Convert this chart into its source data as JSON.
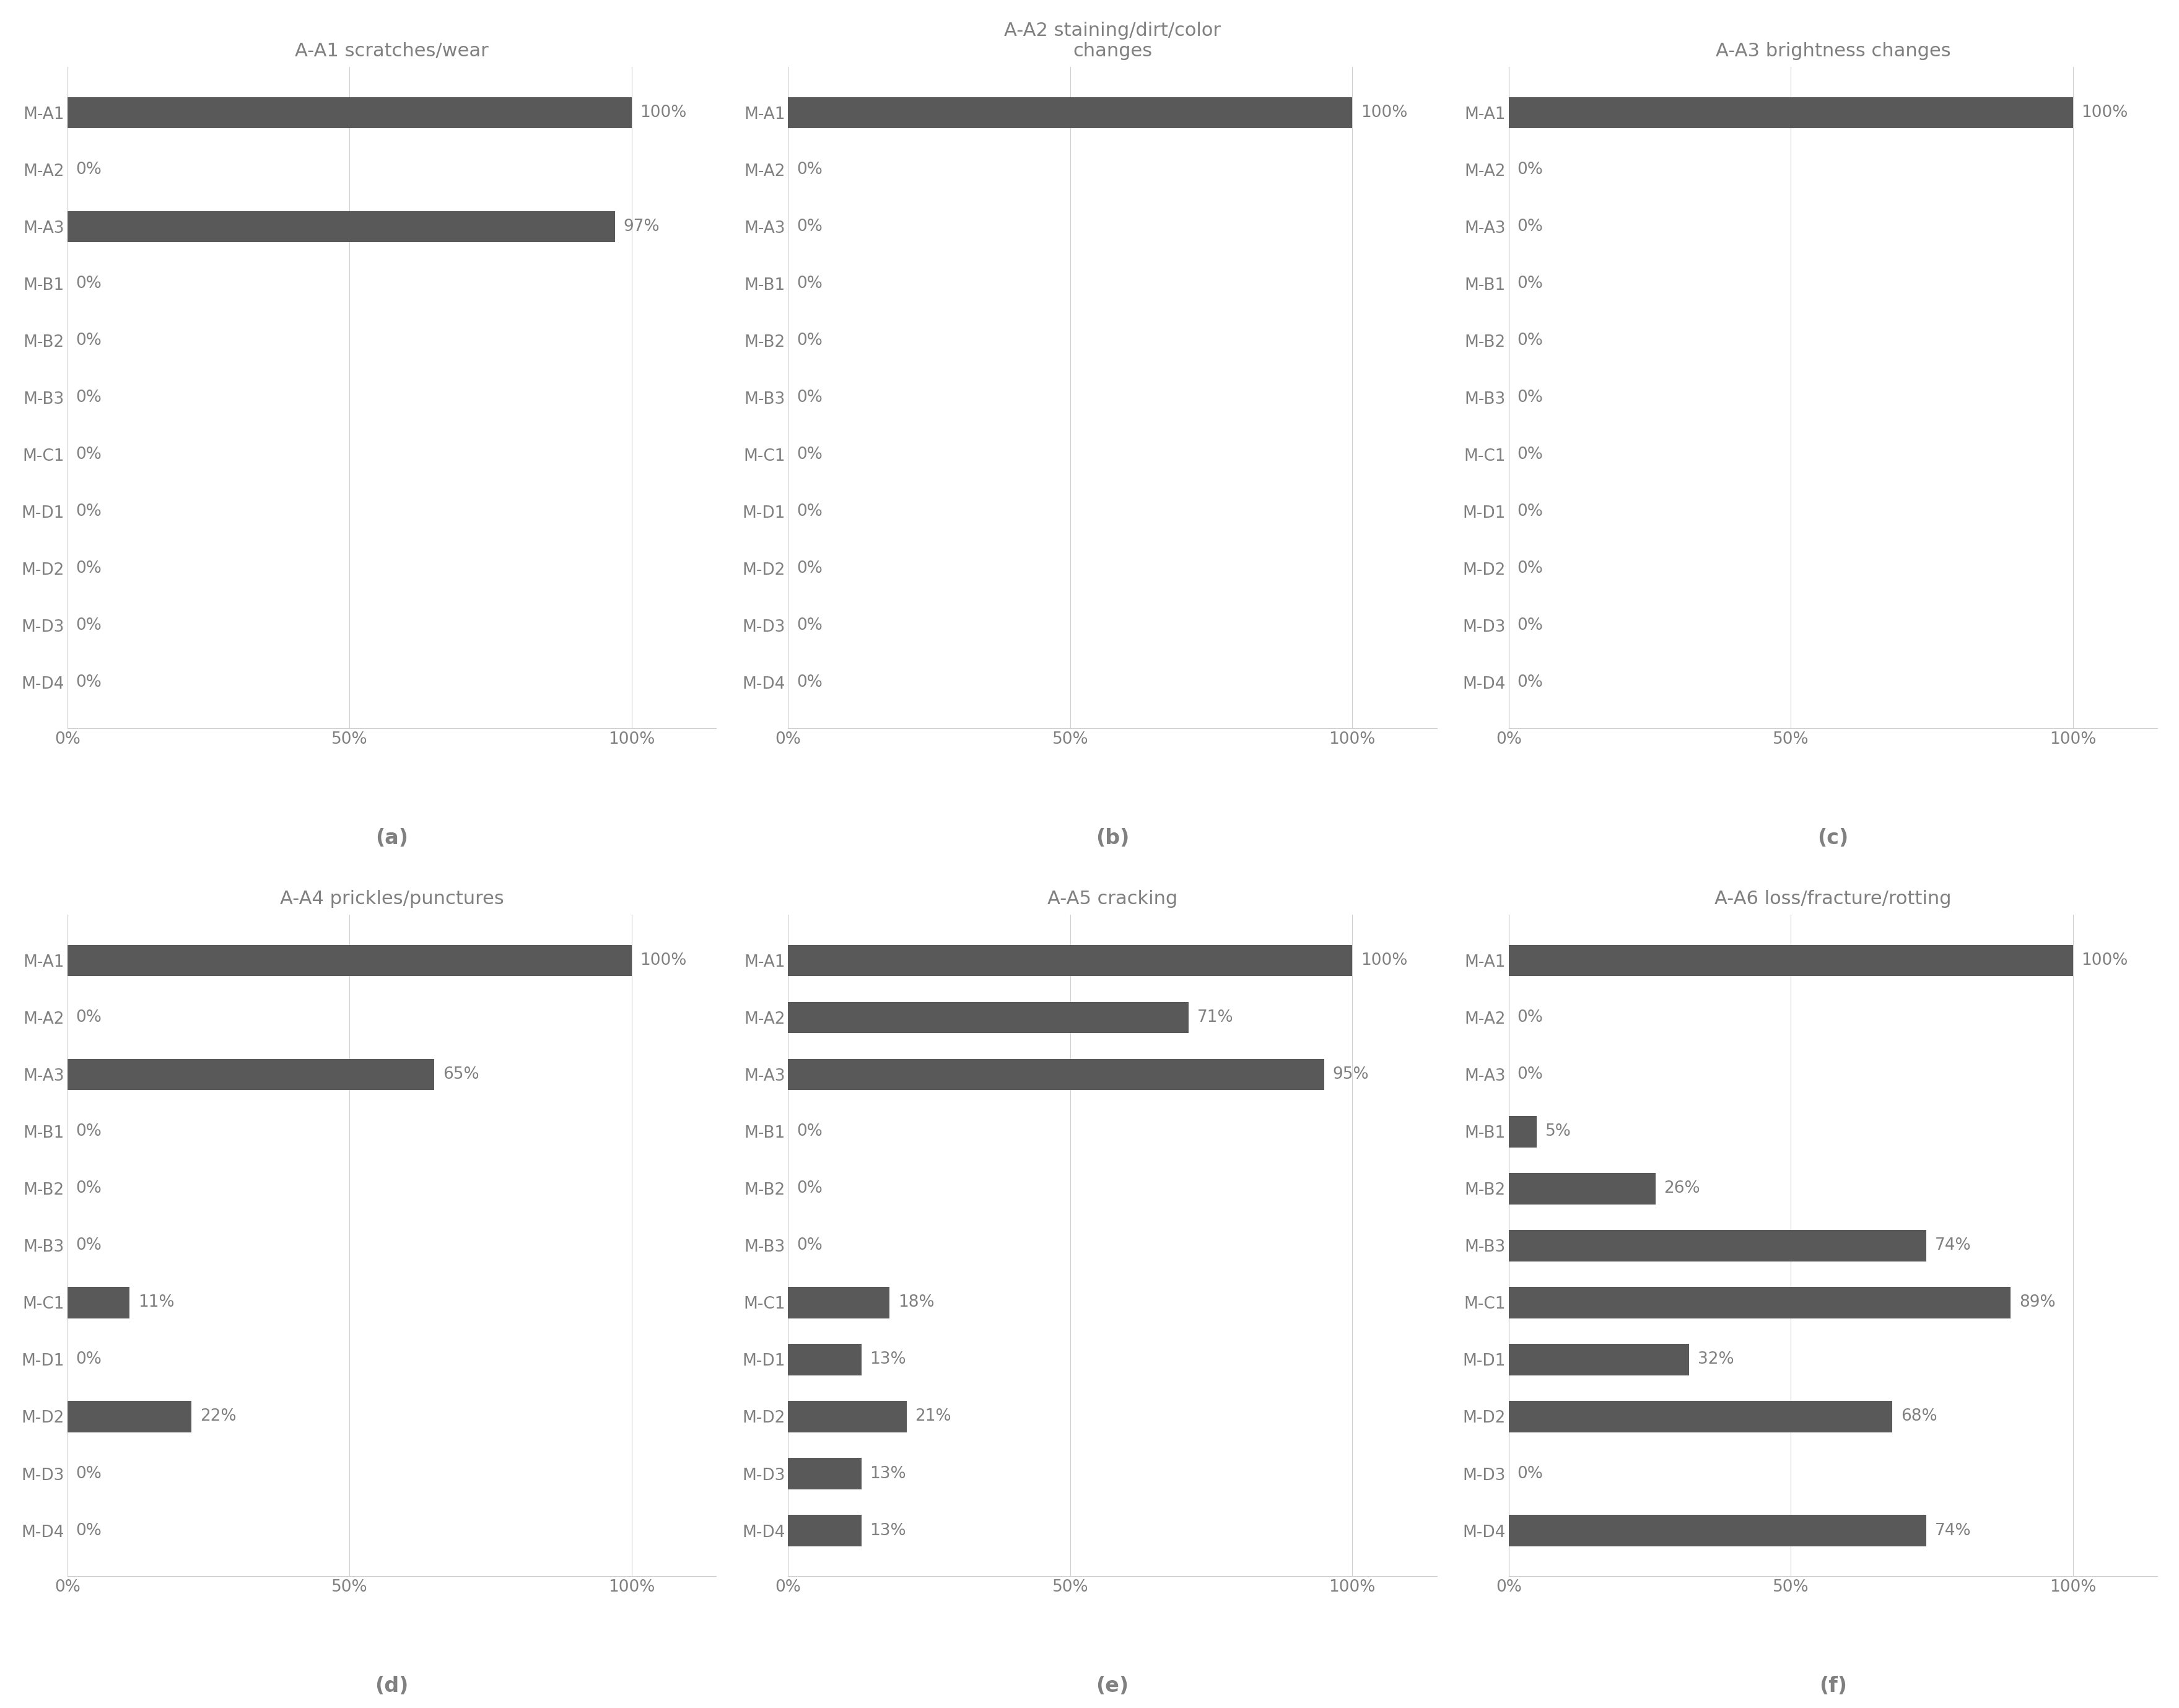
{
  "categories": [
    "M-A1",
    "M-A2",
    "M-A3",
    "M-B1",
    "M-B2",
    "M-B3",
    "M-C1",
    "M-D1",
    "M-D2",
    "M-D3",
    "M-D4"
  ],
  "charts": [
    {
      "title": "A-A1 scratches/wear",
      "label": "(a)",
      "values": [
        100,
        0,
        97,
        0,
        0,
        0,
        0,
        0,
        0,
        0,
        0
      ],
      "labels": [
        "100%",
        "0%",
        "97%",
        "0%",
        "0%",
        "0%",
        "0%",
        "0%",
        "0%",
        "0%",
        "0%"
      ]
    },
    {
      "title": "A-A2 staining/dirt/color\nchanges",
      "label": "(b)",
      "values": [
        100,
        0,
        0,
        0,
        0,
        0,
        0,
        0,
        0,
        0,
        0
      ],
      "labels": [
        "100%",
        "0%",
        "0%",
        "0%",
        "0%",
        "0%",
        "0%",
        "0%",
        "0%",
        "0%",
        "0%"
      ]
    },
    {
      "title": "A-A3 brightness changes",
      "label": "(c)",
      "values": [
        100,
        0,
        0,
        0,
        0,
        0,
        0,
        0,
        0,
        0,
        0
      ],
      "labels": [
        "100%",
        "0%",
        "0%",
        "0%",
        "0%",
        "0%",
        "0%",
        "0%",
        "0%",
        "0%",
        "0%"
      ]
    },
    {
      "title": "A-A4 prickles/punctures",
      "label": "(d)",
      "values": [
        100,
        0,
        65,
        0,
        0,
        0,
        11,
        0,
        22,
        0,
        0
      ],
      "labels": [
        "100%",
        "0%",
        "65%",
        "0%",
        "0%",
        "0%",
        "11%",
        "0%",
        "22%",
        "0%",
        "0%"
      ]
    },
    {
      "title": "A-A5 cracking",
      "label": "(e)",
      "values": [
        100,
        71,
        95,
        0,
        0,
        0,
        18,
        13,
        21,
        13,
        13
      ],
      "labels": [
        "100%",
        "71%",
        "95%",
        "0%",
        "0%",
        "0%",
        "18%",
        "13%",
        "21%",
        "13%",
        "13%"
      ]
    },
    {
      "title": "A-A6 loss/fracture/rotting",
      "label": "(f)",
      "values": [
        100,
        0,
        0,
        5,
        26,
        74,
        89,
        32,
        68,
        0,
        74
      ],
      "labels": [
        "100%",
        "0%",
        "0%",
        "5%",
        "26%",
        "74%",
        "89%",
        "32%",
        "68%",
        "0%",
        "74%"
      ]
    }
  ],
  "bar_color": "#595959",
  "text_color": "#808080",
  "background_color": "#ffffff",
  "xlim": [
    0,
    115
  ],
  "xtick_labels": [
    "0%",
    "50%",
    "100%"
  ],
  "xtick_values": [
    0,
    50,
    100
  ],
  "title_fontsize": 22,
  "tick_fontsize": 19,
  "bar_label_fontsize": 19,
  "subplot_label_fontsize": 24
}
